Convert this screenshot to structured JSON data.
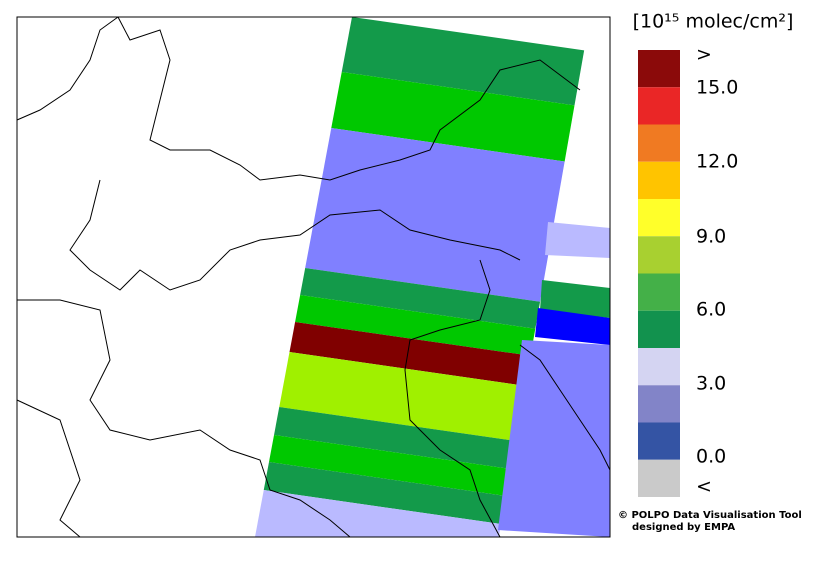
{
  "legend": {
    "unit": "[10¹⁵ molec/cm²]",
    "bins": [
      "#8b0a0a",
      "#ea2626",
      "#f07a22",
      "#ffc400",
      "#ffff2a",
      "#a8d030",
      "#44b048",
      "#12924e",
      "#d4d4f2",
      "#8284c8",
      "#3454a4",
      "#cacaca"
    ],
    "labels": [
      ">",
      "15.0",
      "12.0",
      "9.0",
      "6.0",
      "3.0",
      "0.0",
      "<"
    ]
  },
  "credit": [
    "© POLPO Data Visualisation Tool",
    "designed by EMPA"
  ]
}
